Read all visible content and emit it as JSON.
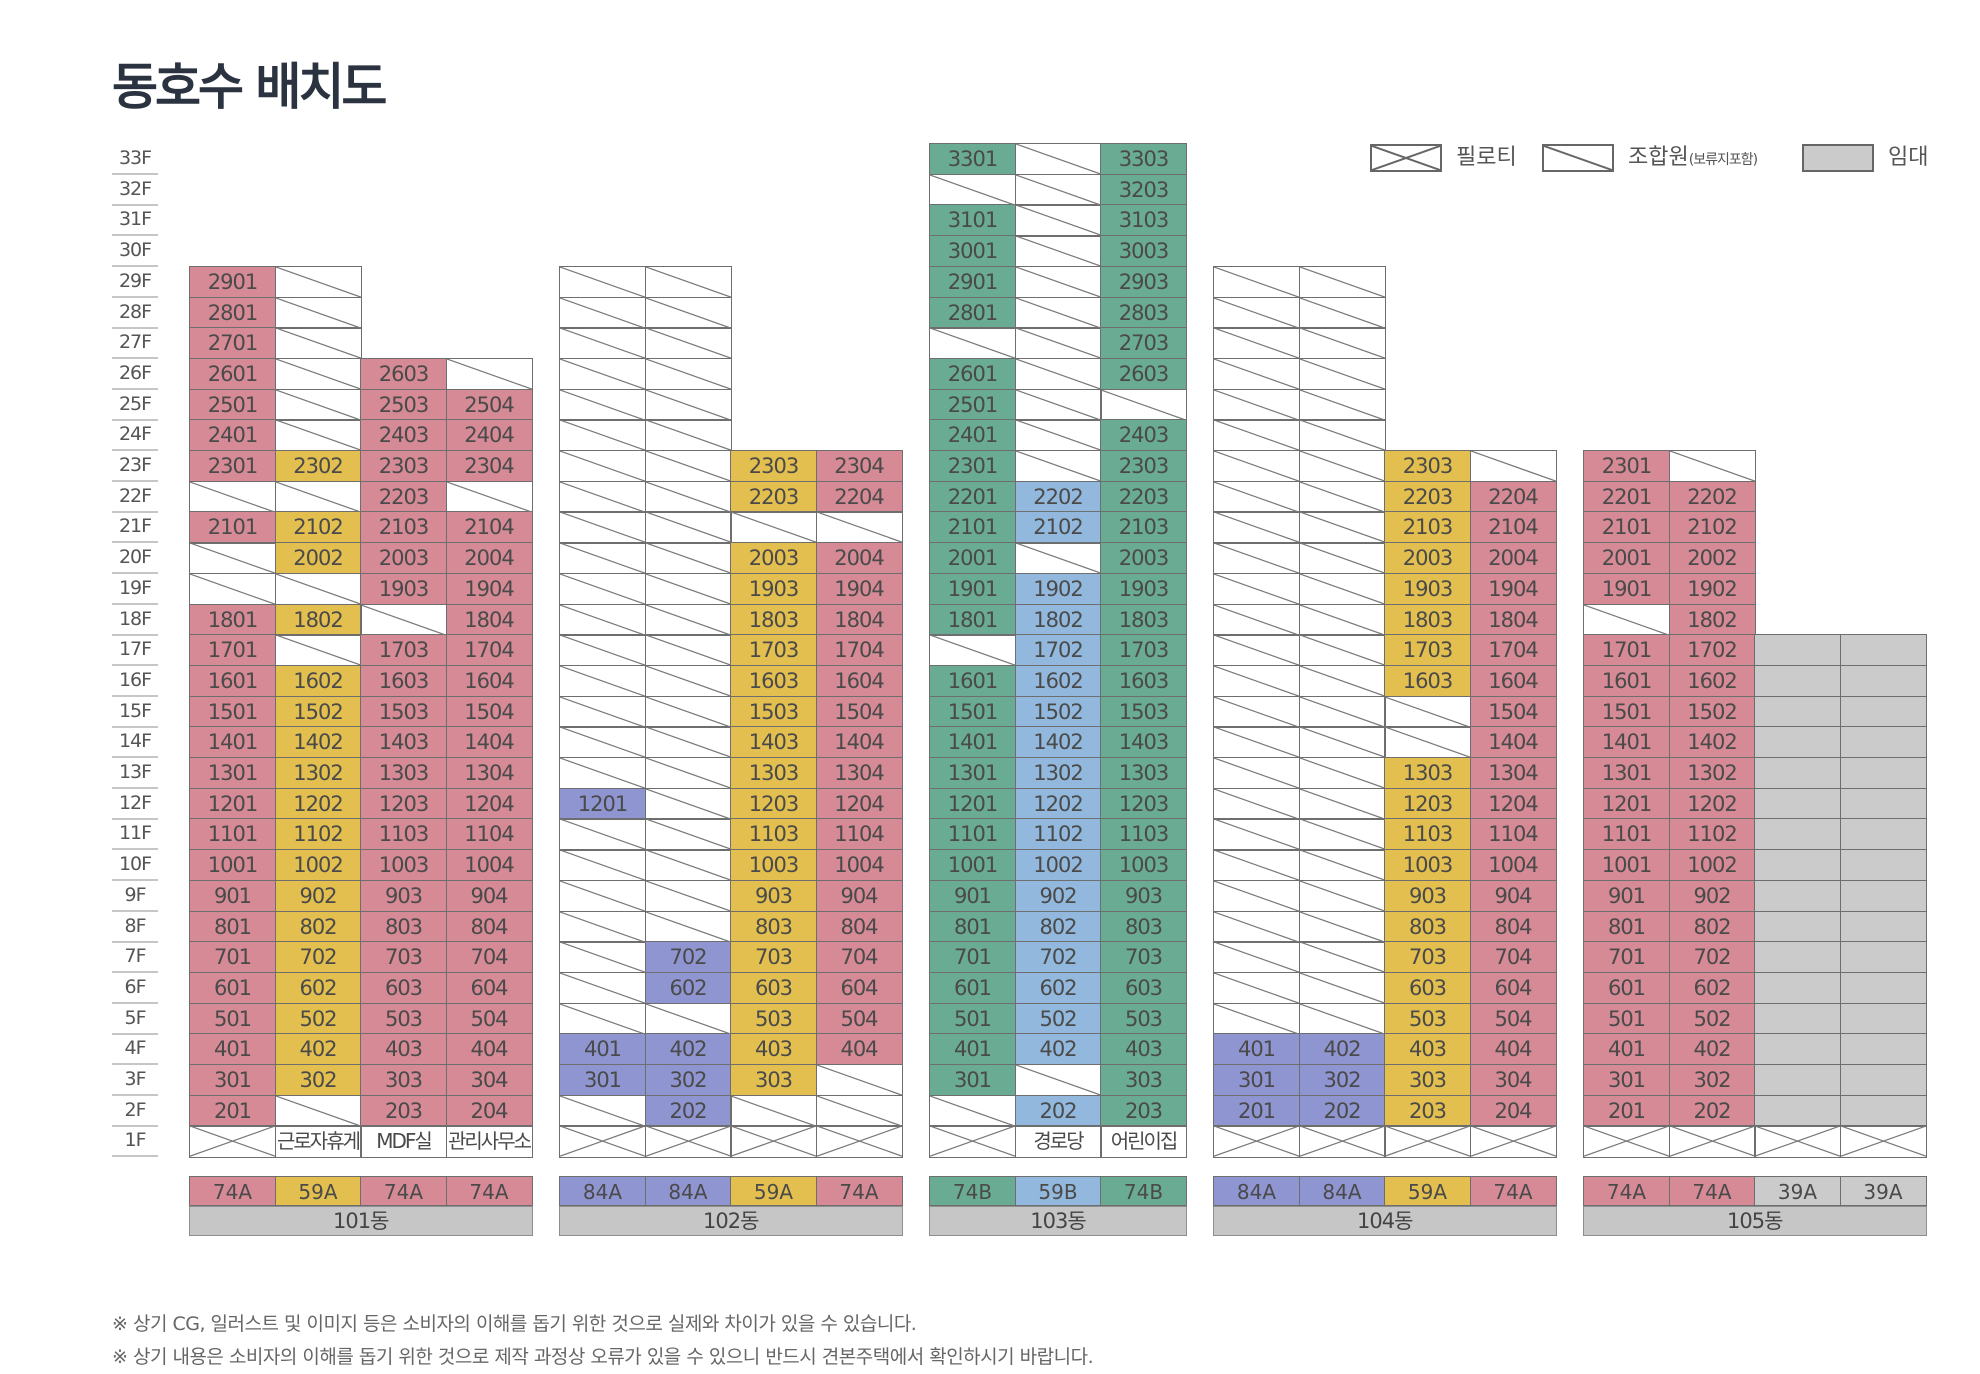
{
  "title": "동호수 배치도",
  "legend": [
    {
      "key": "pilotis",
      "label": "필로티",
      "sub": ""
    },
    {
      "key": "member",
      "label": "조합원",
      "sub": "(보류지포함)"
    },
    {
      "key": "rental",
      "label": "임대",
      "sub": ""
    }
  ],
  "floors": [
    "33F",
    "32F",
    "31F",
    "30F",
    "29F",
    "28F",
    "27F",
    "26F",
    "25F",
    "24F",
    "23F",
    "22F",
    "21F",
    "20F",
    "19F",
    "18F",
    "17F",
    "16F",
    "15F",
    "14F",
    "13F",
    "12F",
    "11F",
    "10F",
    "9F",
    "8F",
    "7F",
    "6F",
    "5F",
    "4F",
    "3F",
    "2F",
    "1F"
  ],
  "colors": {
    "pink": "#d58a95",
    "yellow": "#e3bf4f",
    "green": "#69ab93",
    "blue": "#92b9dd",
    "purple": "#8f95d1",
    "gray": "#cbcbcb"
  },
  "buildings": [
    {
      "name": "101동",
      "types": [
        {
          "label": "74A",
          "color": "pink"
        },
        {
          "label": "59A",
          "color": "yellow"
        },
        {
          "label": "74A",
          "color": "pink"
        },
        {
          "label": "74A",
          "color": "pink"
        }
      ],
      "columns": [
        {
          "height": 29,
          "units": {
            "29": "2901",
            "28": "2801",
            "27": "2701",
            "26": "2601",
            "25": "2501",
            "24": "2401",
            "23": "2301",
            "22": "m",
            "21": "2101",
            "20": "m",
            "19": "m",
            "18": "1801",
            "17": "1701",
            "16": "1601",
            "15": "1501",
            "14": "1401",
            "13": "1301",
            "12": "1201",
            "11": "1101",
            "10": "1001",
            "9": "901",
            "8": "801",
            "7": "701",
            "6": "601",
            "5": "501",
            "4": "401",
            "3": "301",
            "2": "201"
          },
          "f1": ""
        },
        {
          "height": 29,
          "units": {
            "29": "m",
            "28": "m",
            "27": "m",
            "26": "m",
            "25": "m",
            "24": "m",
            "23": "2302",
            "22": "m",
            "21": "2102",
            "20": "2002",
            "19": "m",
            "18": "1802",
            "17": "m",
            "16": "1602",
            "15": "1502",
            "14": "1402",
            "13": "1302",
            "12": "1202",
            "11": "1102",
            "10": "1002",
            "9": "902",
            "8": "802",
            "7": "702",
            "6": "602",
            "5": "502",
            "4": "402",
            "3": "302",
            "2": "m"
          },
          "f1": "근로자휴게실"
        },
        {
          "height": 26,
          "units": {
            "26": "2603",
            "25": "2503",
            "24": "2403",
            "23": "2303",
            "22": "2203",
            "21": "2103",
            "20": "2003",
            "19": "1903",
            "18": "m",
            "17": "1703",
            "16": "1603",
            "15": "1503",
            "14": "1403",
            "13": "1303",
            "12": "1203",
            "11": "1103",
            "10": "1003",
            "9": "903",
            "8": "803",
            "7": "703",
            "6": "603",
            "5": "503",
            "4": "403",
            "3": "303",
            "2": "203"
          },
          "f1": "MDF실"
        },
        {
          "height": 26,
          "units": {
            "26": "m",
            "25": "2504",
            "24": "2404",
            "23": "2304",
            "22": "m",
            "21": "2104",
            "20": "2004",
            "19": "1904",
            "18": "1804",
            "17": "1704",
            "16": "1604",
            "15": "1504",
            "14": "1404",
            "13": "1304",
            "12": "1204",
            "11": "1104",
            "10": "1004",
            "9": "904",
            "8": "804",
            "7": "704",
            "6": "604",
            "5": "504",
            "4": "404",
            "3": "304",
            "2": "204"
          },
          "f1": "관리사무소"
        }
      ]
    },
    {
      "name": "102동",
      "types": [
        {
          "label": "84A",
          "color": "purple"
        },
        {
          "label": "84A",
          "color": "purple"
        },
        {
          "label": "59A",
          "color": "yellow"
        },
        {
          "label": "74A",
          "color": "pink"
        }
      ],
      "columns": [
        {
          "height": 29,
          "units": {
            "12": "1201",
            "4": "401",
            "3": "301"
          },
          "f1": ""
        },
        {
          "height": 29,
          "units": {
            "7": "702",
            "6": "602",
            "4": "402",
            "3": "302",
            "2": "202"
          },
          "f1": ""
        },
        {
          "height": 23,
          "units": {
            "23": "2303",
            "22": "2203",
            "21": "m",
            "20": "2003",
            "19": "1903",
            "18": "1803",
            "17": "1703",
            "16": "1603",
            "15": "1503",
            "14": "1403",
            "13": "1303",
            "12": "1203",
            "11": "1103",
            "10": "1003",
            "9": "903",
            "8": "803",
            "7": "703",
            "6": "603",
            "5": "503",
            "4": "403",
            "3": "303",
            "2": "m"
          },
          "f1": ""
        },
        {
          "height": 23,
          "units": {
            "23": "2304",
            "22": "2204",
            "21": "m",
            "20": "2004",
            "19": "1904",
            "18": "1804",
            "17": "1704",
            "16": "1604",
            "15": "1504",
            "14": "1404",
            "13": "1304",
            "12": "1204",
            "11": "1104",
            "10": "1004",
            "9": "904",
            "8": "804",
            "7": "704",
            "6": "604",
            "5": "504",
            "4": "404",
            "3": "m",
            "2": "m"
          },
          "f1": ""
        }
      ]
    },
    {
      "name": "103동",
      "types": [
        {
          "label": "74B",
          "color": "green"
        },
        {
          "label": "59B",
          "color": "blue"
        },
        {
          "label": "74B",
          "color": "green"
        }
      ],
      "columns": [
        {
          "height": 33,
          "units": {
            "33": "3301",
            "32": "m",
            "31": "3101",
            "30": "3001",
            "29": "2901",
            "28": "2801",
            "27": "m",
            "26": "2601",
            "25": "2501",
            "24": "2401",
            "23": "2301",
            "22": "2201",
            "21": "2101",
            "20": "2001",
            "19": "1901",
            "18": "1801",
            "17": "m",
            "16": "1601",
            "15": "1501",
            "14": "1401",
            "13": "1301",
            "12": "1201",
            "11": "1101",
            "10": "1001",
            "9": "901",
            "8": "801",
            "7": "701",
            "6": "601",
            "5": "501",
            "4": "401",
            "3": "301",
            "2": "m"
          },
          "f1": ""
        },
        {
          "height": 33,
          "units": {
            "22": "2202",
            "21": "2102",
            "20": "m",
            "19": "1902",
            "18": "1802",
            "17": "1702",
            "16": "1602",
            "15": "1502",
            "14": "1402",
            "13": "1302",
            "12": "1202",
            "11": "1102",
            "10": "1002",
            "9": "902",
            "8": "802",
            "7": "702",
            "6": "602",
            "5": "502",
            "4": "402",
            "3": "m",
            "2": "202"
          },
          "f1": "경로당"
        },
        {
          "height": 33,
          "units": {
            "33": "3303",
            "32": "3203",
            "31": "3103",
            "30": "3003",
            "29": "2903",
            "28": "2803",
            "27": "2703",
            "26": "2603",
            "25": "m",
            "24": "2403",
            "23": "2303",
            "22": "2203",
            "21": "2103",
            "20": "2003",
            "19": "1903",
            "18": "1803",
            "17": "1703",
            "16": "1603",
            "15": "1503",
            "14": "1403",
            "13": "1303",
            "12": "1203",
            "11": "1103",
            "10": "1003",
            "9": "903",
            "8": "803",
            "7": "703",
            "6": "603",
            "5": "503",
            "4": "403",
            "3": "303",
            "2": "203"
          },
          "f1": "어린이집"
        }
      ]
    },
    {
      "name": "104동",
      "types": [
        {
          "label": "84A",
          "color": "purple"
        },
        {
          "label": "84A",
          "color": "purple"
        },
        {
          "label": "59A",
          "color": "yellow"
        },
        {
          "label": "74A",
          "color": "pink"
        }
      ],
      "columns": [
        {
          "height": 29,
          "units": {
            "4": "401",
            "3": "301",
            "2": "201"
          },
          "f1": ""
        },
        {
          "height": 29,
          "units": {
            "4": "402",
            "3": "302",
            "2": "202"
          },
          "f1": ""
        },
        {
          "height": 23,
          "units": {
            "23": "2303",
            "22": "2203",
            "21": "2103",
            "20": "2003",
            "19": "1903",
            "18": "1803",
            "17": "1703",
            "16": "1603",
            "15": "m",
            "14": "m",
            "13": "1303",
            "12": "1203",
            "11": "1103",
            "10": "1003",
            "9": "903",
            "8": "803",
            "7": "703",
            "6": "603",
            "5": "503",
            "4": "403",
            "3": "303",
            "2": "203"
          },
          "f1": ""
        },
        {
          "height": 23,
          "units": {
            "23": "m",
            "22": "2204",
            "21": "2104",
            "20": "2004",
            "19": "1904",
            "18": "1804",
            "17": "1704",
            "16": "1604",
            "15": "1504",
            "14": "1404",
            "13": "1304",
            "12": "1204",
            "11": "1104",
            "10": "1004",
            "9": "904",
            "8": "804",
            "7": "704",
            "6": "604",
            "5": "504",
            "4": "404",
            "3": "304",
            "2": "204"
          },
          "f1": ""
        }
      ]
    },
    {
      "name": "105동",
      "types": [
        {
          "label": "74A",
          "color": "pink"
        },
        {
          "label": "74A",
          "color": "pink"
        },
        {
          "label": "39A",
          "color": "gray"
        },
        {
          "label": "39A",
          "color": "gray"
        }
      ],
      "columns": [
        {
          "height": 23,
          "units": {
            "23": "2301",
            "22": "2201",
            "21": "2101",
            "20": "2001",
            "19": "1901",
            "18": "m",
            "17": "1701",
            "16": "1601",
            "15": "1501",
            "14": "1401",
            "13": "1301",
            "12": "1201",
            "11": "1101",
            "10": "1001",
            "9": "901",
            "8": "801",
            "7": "701",
            "6": "601",
            "5": "501",
            "4": "401",
            "3": "301",
            "2": "201"
          },
          "f1": ""
        },
        {
          "height": 23,
          "units": {
            "23": "m",
            "22": "2202",
            "21": "2102",
            "20": "2002",
            "19": "1902",
            "18": "1802",
            "17": "1702",
            "16": "1602",
            "15": "1502",
            "14": "1402",
            "13": "1302",
            "12": "1202",
            "11": "1102",
            "10": "1002",
            "9": "902",
            "8": "802",
            "7": "702",
            "6": "602",
            "5": "502",
            "4": "402",
            "3": "302",
            "2": "202"
          },
          "f1": ""
        },
        {
          "height": 17,
          "units": {
            "17": "r",
            "16": "r",
            "15": "r",
            "14": "r",
            "13": "r",
            "12": "r",
            "11": "r",
            "10": "r",
            "9": "r",
            "8": "r",
            "7": "r",
            "6": "r",
            "5": "r",
            "4": "r",
            "3": "r",
            "2": "r"
          },
          "f1": ""
        },
        {
          "height": 17,
          "units": {
            "17": "r",
            "16": "r",
            "15": "r",
            "14": "r",
            "13": "r",
            "12": "r",
            "11": "r",
            "10": "r",
            "9": "r",
            "8": "r",
            "7": "r",
            "6": "r",
            "5": "r",
            "4": "r",
            "3": "r",
            "2": "r"
          },
          "f1": ""
        }
      ]
    }
  ],
  "notes": [
    "※ 상기 CG, 일러스트 및 이미지 등은 소비자의 이해를 돕기 위한 것으로 실제와 차이가 있을 수 있습니다.",
    "※ 상기 내용은 소비자의 이해를 돕기 위한 것으로 제작 과정상 오류가 있을 수 있으니 반드시 견본주택에서 확인하시기 바랍니다."
  ]
}
